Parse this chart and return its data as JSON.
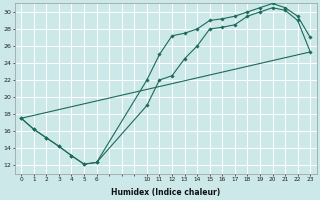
{
  "xlabel": "Humidex (Indice chaleur)",
  "bg_color": "#cce8e8",
  "grid_color": "#ffffff",
  "line_color": "#1a6b5a",
  "xlim": [
    0,
    23
  ],
  "ylim": [
    11,
    31
  ],
  "xtick_positions": [
    0,
    1,
    2,
    3,
    4,
    5,
    6,
    10,
    11,
    12,
    13,
    14,
    15,
    16,
    17,
    18,
    19,
    20,
    21,
    22,
    23
  ],
  "xtick_labels": [
    "0",
    "1",
    "2",
    "3",
    "4",
    "5",
    "6",
    "10",
    "11",
    "12",
    "13",
    "14",
    "15",
    "16",
    "17",
    "18",
    "19",
    "20",
    "21",
    "22",
    "23"
  ],
  "yticks": [
    12,
    14,
    16,
    18,
    20,
    22,
    24,
    26,
    28,
    30
  ],
  "line1_x": [
    0,
    1,
    2,
    3,
    4,
    5,
    6,
    10,
    11,
    12,
    13,
    14,
    15,
    16,
    17,
    18,
    19,
    20,
    21,
    22,
    23
  ],
  "line1_y": [
    17.5,
    16.2,
    15.2,
    14.2,
    13.1,
    12.1,
    12.3,
    22.0,
    25.0,
    27.2,
    27.5,
    28.0,
    29.0,
    29.2,
    29.5,
    30.0,
    30.5,
    31.0,
    30.5,
    29.5,
    27.0
  ],
  "line2_x": [
    0,
    1,
    2,
    3,
    4,
    5,
    6,
    10,
    11,
    12,
    13,
    14,
    15,
    16,
    17,
    18,
    19,
    20,
    21,
    22,
    23
  ],
  "line2_y": [
    17.5,
    16.2,
    15.2,
    14.2,
    13.1,
    12.1,
    12.3,
    19.0,
    22.0,
    22.5,
    24.5,
    26.0,
    28.0,
    28.2,
    28.5,
    29.5,
    30.0,
    30.5,
    30.2,
    29.0,
    25.3
  ],
  "line3_x": [
    0,
    23
  ],
  "line3_y": [
    17.5,
    25.3
  ]
}
